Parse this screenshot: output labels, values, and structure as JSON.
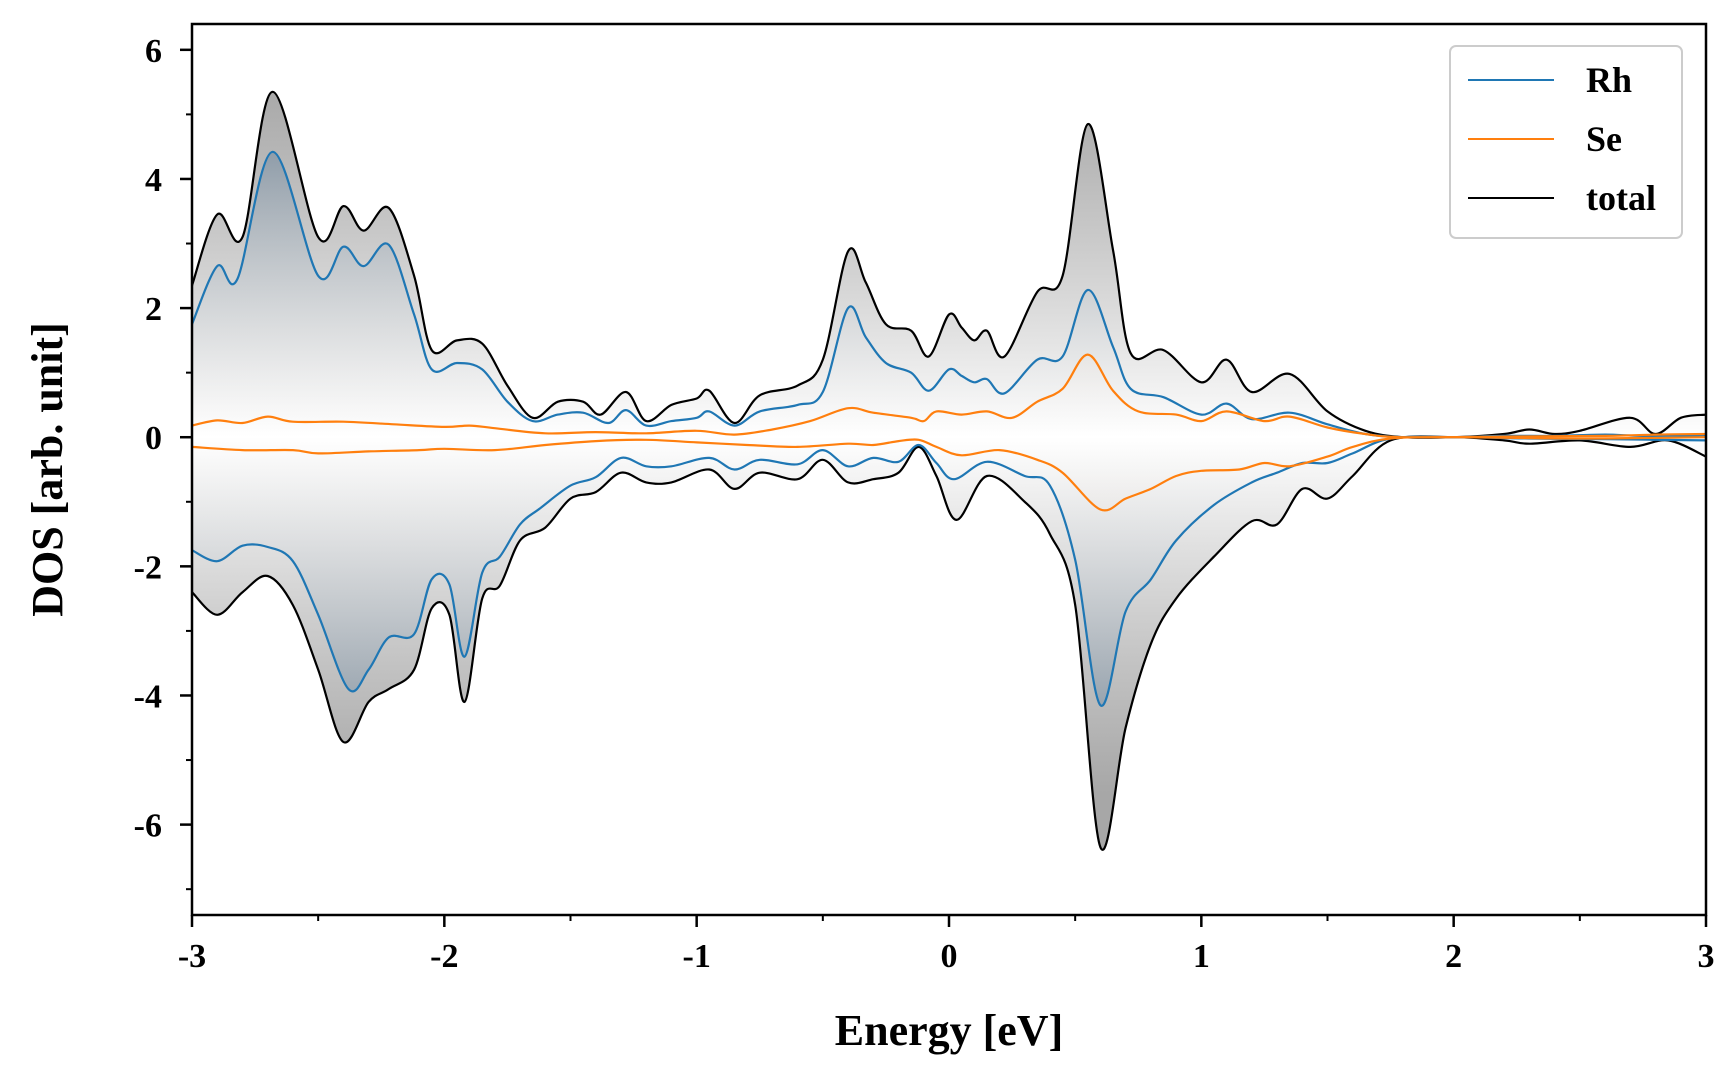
{
  "chart_data": {
    "type": "line",
    "title": "",
    "xlabel": "Energy [eV]",
    "ylabel": "DOS [arb. unit]",
    "xlim": [
      -3,
      3
    ],
    "ylim": [
      -7.4,
      6.4
    ],
    "xticks": [
      -3,
      -2,
      -1,
      0,
      1,
      2,
      3
    ],
    "xtick_labels": [
      "-3",
      "-2",
      "-1",
      "0",
      "1",
      "2",
      "3"
    ],
    "yticks": [
      -6,
      -4,
      -2,
      0,
      2,
      4,
      6
    ],
    "ytick_labels": [
      "-6",
      "-4",
      "-2",
      "0",
      "2",
      "4",
      "6"
    ],
    "grid": false,
    "legend_position": "top-right",
    "fill_under_curves": true,
    "series": [
      {
        "name": "Rh",
        "color": "#1f77b4",
        "up": [
          [
            -3,
            1.75
          ],
          [
            -2.9,
            2.65
          ],
          [
            -2.82,
            2.45
          ],
          [
            -2.68,
            4.42
          ],
          [
            -2.5,
            2.5
          ],
          [
            -2.4,
            2.95
          ],
          [
            -2.32,
            2.65
          ],
          [
            -2.22,
            2.98
          ],
          [
            -2.12,
            1.9
          ],
          [
            -2.05,
            1.05
          ],
          [
            -1.95,
            1.15
          ],
          [
            -1.85,
            1.05
          ],
          [
            -1.75,
            0.55
          ],
          [
            -1.65,
            0.25
          ],
          [
            -1.55,
            0.35
          ],
          [
            -1.45,
            0.38
          ],
          [
            -1.35,
            0.22
          ],
          [
            -1.28,
            0.42
          ],
          [
            -1.2,
            0.18
          ],
          [
            -1.1,
            0.25
          ],
          [
            -1.0,
            0.3
          ],
          [
            -0.95,
            0.4
          ],
          [
            -0.85,
            0.18
          ],
          [
            -0.75,
            0.4
          ],
          [
            -0.6,
            0.5
          ],
          [
            -0.5,
            0.7
          ],
          [
            -0.4,
            2.0
          ],
          [
            -0.33,
            1.55
          ],
          [
            -0.25,
            1.15
          ],
          [
            -0.15,
            1.0
          ],
          [
            -0.08,
            0.72
          ],
          [
            0.0,
            1.05
          ],
          [
            0.05,
            0.95
          ],
          [
            0.1,
            0.85
          ],
          [
            0.15,
            0.9
          ],
          [
            0.22,
            0.68
          ],
          [
            0.35,
            1.2
          ],
          [
            0.45,
            1.25
          ],
          [
            0.55,
            2.28
          ],
          [
            0.65,
            1.4
          ],
          [
            0.72,
            0.75
          ],
          [
            0.85,
            0.62
          ],
          [
            1.0,
            0.35
          ],
          [
            1.1,
            0.52
          ],
          [
            1.2,
            0.28
          ],
          [
            1.35,
            0.38
          ],
          [
            1.5,
            0.2
          ],
          [
            1.65,
            0.05
          ],
          [
            1.8,
            0.0
          ],
          [
            2.0,
            0.0
          ],
          [
            2.2,
            0.02
          ],
          [
            2.4,
            0.02
          ],
          [
            2.6,
            0.04
          ],
          [
            2.75,
            0.02
          ],
          [
            3.0,
            0.03
          ]
        ],
        "down": [
          [
            -3,
            -1.75
          ],
          [
            -2.9,
            -1.92
          ],
          [
            -2.8,
            -1.68
          ],
          [
            -2.7,
            -1.7
          ],
          [
            -2.6,
            -1.92
          ],
          [
            -2.5,
            -2.75
          ],
          [
            -2.38,
            -3.9
          ],
          [
            -2.3,
            -3.6
          ],
          [
            -2.22,
            -3.1
          ],
          [
            -2.12,
            -3.05
          ],
          [
            -2.05,
            -2.2
          ],
          [
            -1.98,
            -2.28
          ],
          [
            -1.92,
            -3.4
          ],
          [
            -1.85,
            -2.1
          ],
          [
            -1.78,
            -1.85
          ],
          [
            -1.7,
            -1.35
          ],
          [
            -1.62,
            -1.1
          ],
          [
            -1.5,
            -0.75
          ],
          [
            -1.4,
            -0.62
          ],
          [
            -1.3,
            -0.32
          ],
          [
            -1.2,
            -0.45
          ],
          [
            -1.1,
            -0.45
          ],
          [
            -0.95,
            -0.32
          ],
          [
            -0.85,
            -0.5
          ],
          [
            -0.75,
            -0.35
          ],
          [
            -0.6,
            -0.42
          ],
          [
            -0.5,
            -0.2
          ],
          [
            -0.4,
            -0.45
          ],
          [
            -0.3,
            -0.32
          ],
          [
            -0.2,
            -0.38
          ],
          [
            -0.12,
            -0.12
          ],
          [
            -0.05,
            -0.4
          ],
          [
            0.02,
            -0.65
          ],
          [
            0.15,
            -0.38
          ],
          [
            0.3,
            -0.6
          ],
          [
            0.4,
            -0.75
          ],
          [
            0.5,
            -1.9
          ],
          [
            0.6,
            -4.15
          ],
          [
            0.7,
            -2.7
          ],
          [
            0.8,
            -2.2
          ],
          [
            0.9,
            -1.6
          ],
          [
            1.05,
            -1.05
          ],
          [
            1.2,
            -0.7
          ],
          [
            1.3,
            -0.55
          ],
          [
            1.4,
            -0.4
          ],
          [
            1.5,
            -0.4
          ],
          [
            1.6,
            -0.25
          ],
          [
            1.75,
            -0.02
          ],
          [
            2.0,
            0.0
          ],
          [
            2.3,
            -0.02
          ],
          [
            2.6,
            -0.03
          ],
          [
            3.0,
            -0.05
          ]
        ]
      },
      {
        "name": "Se",
        "color": "#ff7f0e",
        "up": [
          [
            -3,
            0.18
          ],
          [
            -2.9,
            0.26
          ],
          [
            -2.8,
            0.22
          ],
          [
            -2.7,
            0.32
          ],
          [
            -2.6,
            0.24
          ],
          [
            -2.4,
            0.24
          ],
          [
            -2.2,
            0.2
          ],
          [
            -2.0,
            0.16
          ],
          [
            -1.9,
            0.18
          ],
          [
            -1.8,
            0.14
          ],
          [
            -1.6,
            0.06
          ],
          [
            -1.4,
            0.08
          ],
          [
            -1.2,
            0.06
          ],
          [
            -1.0,
            0.1
          ],
          [
            -0.85,
            0.04
          ],
          [
            -0.7,
            0.12
          ],
          [
            -0.55,
            0.25
          ],
          [
            -0.4,
            0.45
          ],
          [
            -0.3,
            0.38
          ],
          [
            -0.15,
            0.3
          ],
          [
            -0.1,
            0.25
          ],
          [
            -0.05,
            0.4
          ],
          [
            0.05,
            0.35
          ],
          [
            0.15,
            0.4
          ],
          [
            0.25,
            0.3
          ],
          [
            0.35,
            0.55
          ],
          [
            0.45,
            0.75
          ],
          [
            0.55,
            1.28
          ],
          [
            0.65,
            0.72
          ],
          [
            0.75,
            0.4
          ],
          [
            0.9,
            0.35
          ],
          [
            1.0,
            0.25
          ],
          [
            1.1,
            0.4
          ],
          [
            1.25,
            0.25
          ],
          [
            1.35,
            0.32
          ],
          [
            1.5,
            0.15
          ],
          [
            1.65,
            0.05
          ],
          [
            1.8,
            0.0
          ],
          [
            2.2,
            0.01
          ],
          [
            2.6,
            0.02
          ],
          [
            2.8,
            0.04
          ],
          [
            3.0,
            0.05
          ]
        ],
        "down": [
          [
            -3,
            -0.15
          ],
          [
            -2.8,
            -0.2
          ],
          [
            -2.6,
            -0.2
          ],
          [
            -2.5,
            -0.25
          ],
          [
            -2.3,
            -0.22
          ],
          [
            -2.1,
            -0.2
          ],
          [
            -2.0,
            -0.18
          ],
          [
            -1.8,
            -0.2
          ],
          [
            -1.6,
            -0.12
          ],
          [
            -1.4,
            -0.06
          ],
          [
            -1.2,
            -0.04
          ],
          [
            -1.0,
            -0.08
          ],
          [
            -0.8,
            -0.12
          ],
          [
            -0.6,
            -0.15
          ],
          [
            -0.4,
            -0.1
          ],
          [
            -0.3,
            -0.12
          ],
          [
            -0.2,
            -0.06
          ],
          [
            -0.12,
            -0.04
          ],
          [
            -0.05,
            -0.15
          ],
          [
            0.05,
            -0.28
          ],
          [
            0.2,
            -0.2
          ],
          [
            0.35,
            -0.35
          ],
          [
            0.45,
            -0.55
          ],
          [
            0.6,
            -1.12
          ],
          [
            0.7,
            -0.95
          ],
          [
            0.8,
            -0.8
          ],
          [
            0.9,
            -0.6
          ],
          [
            1.0,
            -0.52
          ],
          [
            1.15,
            -0.5
          ],
          [
            1.25,
            -0.4
          ],
          [
            1.35,
            -0.45
          ],
          [
            1.5,
            -0.3
          ],
          [
            1.6,
            -0.15
          ],
          [
            1.75,
            -0.02
          ],
          [
            2.0,
            0.0
          ],
          [
            2.5,
            -0.02
          ],
          [
            3.0,
            0.0
          ]
        ]
      },
      {
        "name": "total",
        "color": "#000000",
        "up": [
          [
            -3,
            2.35
          ],
          [
            -2.9,
            3.45
          ],
          [
            -2.8,
            3.1
          ],
          [
            -2.68,
            5.35
          ],
          [
            -2.5,
            3.1
          ],
          [
            -2.4,
            3.58
          ],
          [
            -2.32,
            3.2
          ],
          [
            -2.22,
            3.55
          ],
          [
            -2.12,
            2.5
          ],
          [
            -2.05,
            1.35
          ],
          [
            -1.95,
            1.5
          ],
          [
            -1.85,
            1.45
          ],
          [
            -1.75,
            0.8
          ],
          [
            -1.65,
            0.3
          ],
          [
            -1.55,
            0.55
          ],
          [
            -1.45,
            0.55
          ],
          [
            -1.38,
            0.35
          ],
          [
            -1.28,
            0.7
          ],
          [
            -1.2,
            0.25
          ],
          [
            -1.1,
            0.5
          ],
          [
            -1.0,
            0.6
          ],
          [
            -0.95,
            0.72
          ],
          [
            -0.85,
            0.22
          ],
          [
            -0.75,
            0.65
          ],
          [
            -0.6,
            0.8
          ],
          [
            -0.5,
            1.2
          ],
          [
            -0.4,
            2.88
          ],
          [
            -0.33,
            2.4
          ],
          [
            -0.25,
            1.75
          ],
          [
            -0.15,
            1.65
          ],
          [
            -0.08,
            1.25
          ],
          [
            0.0,
            1.9
          ],
          [
            0.05,
            1.7
          ],
          [
            0.1,
            1.5
          ],
          [
            0.15,
            1.65
          ],
          [
            0.22,
            1.25
          ],
          [
            0.35,
            2.25
          ],
          [
            0.45,
            2.5
          ],
          [
            0.55,
            4.85
          ],
          [
            0.65,
            2.9
          ],
          [
            0.72,
            1.3
          ],
          [
            0.85,
            1.35
          ],
          [
            1.0,
            0.85
          ],
          [
            1.1,
            1.2
          ],
          [
            1.2,
            0.7
          ],
          [
            1.35,
            0.98
          ],
          [
            1.5,
            0.4
          ],
          [
            1.65,
            0.1
          ],
          [
            1.8,
            0.0
          ],
          [
            2.0,
            0.0
          ],
          [
            2.2,
            0.05
          ],
          [
            2.3,
            0.12
          ],
          [
            2.4,
            0.05
          ],
          [
            2.5,
            0.1
          ],
          [
            2.7,
            0.3
          ],
          [
            2.8,
            0.05
          ],
          [
            2.9,
            0.3
          ],
          [
            3.0,
            0.35
          ]
        ],
        "down": [
          [
            -3,
            -2.4
          ],
          [
            -2.9,
            -2.75
          ],
          [
            -2.8,
            -2.4
          ],
          [
            -2.7,
            -2.15
          ],
          [
            -2.6,
            -2.6
          ],
          [
            -2.5,
            -3.6
          ],
          [
            -2.4,
            -4.72
          ],
          [
            -2.3,
            -4.1
          ],
          [
            -2.22,
            -3.9
          ],
          [
            -2.12,
            -3.6
          ],
          [
            -2.05,
            -2.65
          ],
          [
            -1.98,
            -2.75
          ],
          [
            -1.92,
            -4.1
          ],
          [
            -1.85,
            -2.5
          ],
          [
            -1.78,
            -2.3
          ],
          [
            -1.7,
            -1.6
          ],
          [
            -1.6,
            -1.4
          ],
          [
            -1.5,
            -0.95
          ],
          [
            -1.4,
            -0.85
          ],
          [
            -1.3,
            -0.55
          ],
          [
            -1.2,
            -0.7
          ],
          [
            -1.1,
            -0.7
          ],
          [
            -0.95,
            -0.5
          ],
          [
            -0.85,
            -0.8
          ],
          [
            -0.75,
            -0.55
          ],
          [
            -0.6,
            -0.65
          ],
          [
            -0.5,
            -0.35
          ],
          [
            -0.4,
            -0.7
          ],
          [
            -0.3,
            -0.65
          ],
          [
            -0.2,
            -0.55
          ],
          [
            -0.12,
            -0.15
          ],
          [
            -0.05,
            -0.6
          ],
          [
            0.03,
            -1.28
          ],
          [
            0.15,
            -0.6
          ],
          [
            0.3,
            -1.0
          ],
          [
            0.4,
            -1.5
          ],
          [
            0.5,
            -2.6
          ],
          [
            0.6,
            -6.35
          ],
          [
            0.7,
            -4.5
          ],
          [
            0.8,
            -3.2
          ],
          [
            0.9,
            -2.5
          ],
          [
            1.05,
            -1.85
          ],
          [
            1.2,
            -1.3
          ],
          [
            1.3,
            -1.35
          ],
          [
            1.4,
            -0.8
          ],
          [
            1.5,
            -0.95
          ],
          [
            1.6,
            -0.6
          ],
          [
            1.75,
            -0.05
          ],
          [
            2.0,
            0.0
          ],
          [
            2.2,
            -0.05
          ],
          [
            2.3,
            -0.1
          ],
          [
            2.5,
            -0.05
          ],
          [
            2.7,
            -0.15
          ],
          [
            2.85,
            -0.05
          ],
          [
            3.0,
            -0.3
          ]
        ]
      }
    ]
  }
}
